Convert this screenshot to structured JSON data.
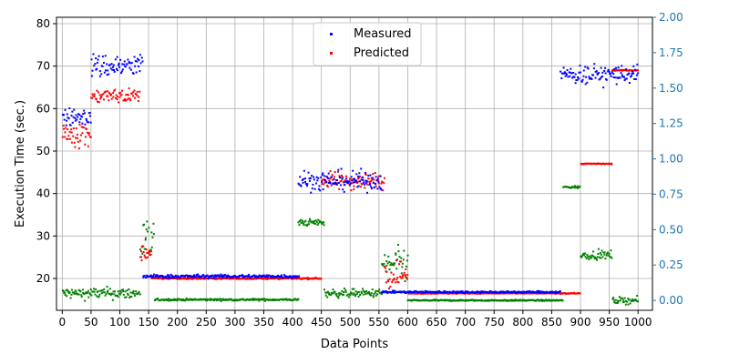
{
  "chart_data": {
    "type": "scatter",
    "title": "",
    "xlabel": "Data Points",
    "ylabel": "Execution Time (sec.)",
    "xlim": [
      -10,
      1025
    ],
    "ylim": [
      12.5,
      81.5
    ],
    "y2lim": [
      -0.07,
      2.0
    ],
    "xticks": [
      0,
      50,
      100,
      150,
      200,
      250,
      300,
      350,
      400,
      450,
      500,
      550,
      600,
      650,
      700,
      750,
      800,
      850,
      900,
      950,
      1000
    ],
    "yticks": [
      20,
      30,
      40,
      50,
      60,
      70,
      80
    ],
    "y2ticks": [
      "0.00",
      "0.25",
      "0.50",
      "0.75",
      "1.00",
      "1.25",
      "1.50",
      "1.75",
      "2.00"
    ],
    "y2tick_values": [
      0,
      0.25,
      0.5,
      0.75,
      1.0,
      1.25,
      1.5,
      1.75,
      2.0
    ],
    "grid": true,
    "legend_position": "top-center",
    "legend": [
      "Measured",
      "Predicted"
    ],
    "series": [
      {
        "name": "Measured",
        "color": "#0000ff",
        "axis": "left",
        "segments": [
          {
            "x": [
              0,
              50
            ],
            "center": 58,
            "spread": 3.5
          },
          {
            "x": [
              50,
              140
            ],
            "center": 70,
            "spread": 5
          },
          {
            "x": [
              140,
              410
            ],
            "center": 20.5,
            "spread": 0.7
          },
          {
            "x": [
              410,
              555
            ],
            "center": 43,
            "spread": 4
          },
          {
            "x": [
              555,
              865
            ],
            "center": 16.8,
            "spread": 0.4
          },
          {
            "x": [
              865,
              1000
            ],
            "center": 68,
            "spread": 4
          }
        ]
      },
      {
        "name": "Predicted",
        "color": "#ff0000",
        "axis": "left",
        "segments": [
          {
            "x": [
              0,
              50
            ],
            "center": 54,
            "spread": 5
          },
          {
            "x": [
              50,
              135
            ],
            "center": 63,
            "spread": 2.8
          },
          {
            "x": [
              135,
              155
            ],
            "center": 26,
            "spread": 3
          },
          {
            "x": [
              155,
              450
            ],
            "center": 20,
            "spread": 0.3
          },
          {
            "x": [
              450,
              560
            ],
            "center": 43,
            "spread": 3.5
          },
          {
            "x": [
              560,
              600
            ],
            "center": 21,
            "spread": 5
          },
          {
            "x": [
              600,
              900
            ],
            "center": 16.5,
            "spread": 0.2
          },
          {
            "x": [
              900,
              955
            ],
            "center": 47,
            "spread": 0.2
          },
          {
            "x": [
              955,
              1000
            ],
            "center": 69,
            "spread": 0.2
          }
        ]
      },
      {
        "name": "",
        "color": "#008000",
        "axis": "right",
        "segments": [
          {
            "x": [
              0,
              135
            ],
            "center": 0.05,
            "spread": 0.07
          },
          {
            "x": [
              135,
              160
            ],
            "center": 0.4,
            "spread": 0.3
          },
          {
            "x": [
              160,
              410
            ],
            "center": 0.005,
            "spread": 0.012
          },
          {
            "x": [
              410,
              455
            ],
            "center": 0.55,
            "spread": 0.04
          },
          {
            "x": [
              455,
              555
            ],
            "center": 0.05,
            "spread": 0.05
          },
          {
            "x": [
              555,
              600
            ],
            "center": 0.25,
            "spread": 0.2
          },
          {
            "x": [
              600,
              870
            ],
            "center": 0.0,
            "spread": 0.008
          },
          {
            "x": [
              870,
              900
            ],
            "center": 0.8,
            "spread": 0.015
          },
          {
            "x": [
              900,
              955
            ],
            "center": 0.32,
            "spread": 0.05
          },
          {
            "x": [
              955,
              1000
            ],
            "center": 0.0,
            "spread": 0.04
          }
        ]
      }
    ]
  }
}
